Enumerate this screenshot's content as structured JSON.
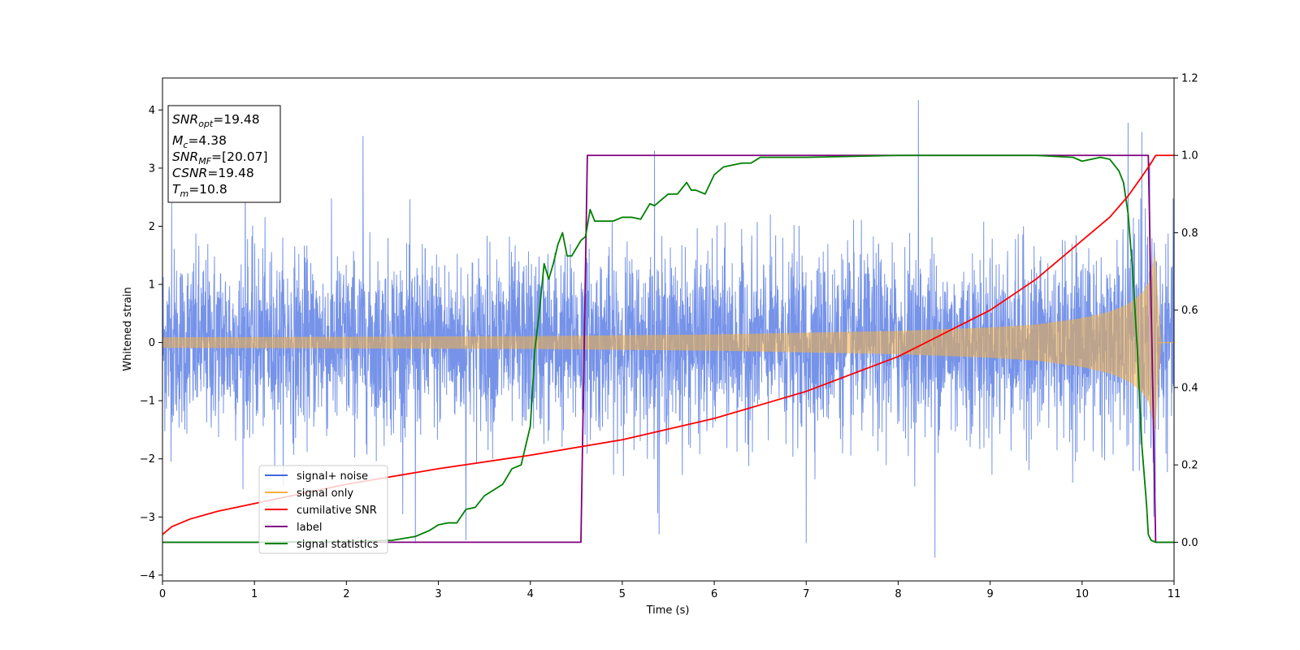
{
  "chart_data": {
    "type": "line",
    "xlabel": "Time (s)",
    "ylabel": "Whitened strain",
    "xlim": [
      0,
      11
    ],
    "ylim": [
      -4.1,
      4.55
    ],
    "ylim_right": [
      -0.1,
      1.2
    ],
    "x_ticks": [
      "0",
      "1",
      "2",
      "3",
      "4",
      "5",
      "6",
      "7",
      "8",
      "9",
      "10",
      "11"
    ],
    "y_ticks": [
      "4",
      "3",
      "2",
      "1",
      "0",
      "−1",
      "−2",
      "−3",
      "−4"
    ],
    "y_ticks_right": [
      "1.2",
      "1.0",
      "0.8",
      "0.6",
      "0.4",
      "0.2",
      "0.0"
    ],
    "grid": false,
    "legend_position": "lower-left",
    "annotation": {
      "lines": [
        {
          "italic": "SNR",
          "sub": "opt",
          "rest": "=19.48"
        },
        {
          "italic": "M",
          "sub": "c",
          "rest": "=4.38"
        },
        {
          "italic": "SNR",
          "sub": "MF",
          "rest": "=[20.07]"
        },
        {
          "italic": "CSNR",
          "sub": "",
          "rest": "=19.48"
        },
        {
          "italic": "T",
          "sub": "m",
          "rest": "=10.8"
        }
      ]
    },
    "series": [
      {
        "name": "signal+ noise",
        "axis": "left",
        "color": "#4169e1",
        "style": "noise band",
        "typical_std": 0.75,
        "extreme_points": [
          [
            0.1,
            2.4
          ],
          [
            0.9,
            3.2
          ],
          [
            2.18,
            3.55
          ],
          [
            2.75,
            -3.45
          ],
          [
            3.3,
            -3.4
          ],
          [
            5.35,
            3.3
          ],
          [
            5.4,
            -3.3
          ],
          [
            7.0,
            -3.45
          ],
          [
            8.22,
            4.17
          ],
          [
            8.4,
            -3.7
          ],
          [
            10.5,
            3.78
          ],
          [
            10.65,
            3.62
          ],
          [
            10.78,
            -3.0
          ]
        ]
      },
      {
        "name": "signal only",
        "axis": "left",
        "color": "#f5b041",
        "style": "chirp envelope",
        "envelope": {
          "t": [
            0,
            2,
            4,
            6,
            7,
            8,
            9,
            9.5,
            10,
            10.3,
            10.5,
            10.65,
            10.75,
            10.8,
            10.82,
            11
          ],
          "amp": [
            0.09,
            0.1,
            0.11,
            0.14,
            0.17,
            0.2,
            0.26,
            0.31,
            0.42,
            0.53,
            0.66,
            0.85,
            1.1,
            1.6,
            0,
            0
          ]
        }
      },
      {
        "name": "cumilative SNR",
        "axis": "right",
        "color": "#ff0000",
        "x": [
          0,
          0.1,
          0.3,
          0.6,
          1,
          2,
          3,
          4,
          5,
          6,
          7,
          8,
          9,
          9.5,
          10,
          10.3,
          10.5,
          10.65,
          10.75,
          10.8,
          10.85,
          11
        ],
        "values": [
          0.02,
          0.04,
          0.06,
          0.08,
          0.1,
          0.15,
          0.19,
          0.225,
          0.265,
          0.32,
          0.39,
          0.48,
          0.6,
          0.68,
          0.78,
          0.84,
          0.895,
          0.945,
          0.98,
          1.0,
          1.0,
          1.0
        ]
      },
      {
        "name": "label",
        "axis": "right",
        "color": "#800080",
        "x": [
          0,
          4.55,
          4.62,
          10.72,
          10.8,
          11
        ],
        "values": [
          0,
          0,
          1,
          1,
          0,
          0
        ]
      },
      {
        "name": "signal statistics",
        "axis": "right",
        "color": "#008000",
        "x": [
          0,
          1,
          2,
          2.5,
          2.75,
          2.9,
          3.0,
          3.1,
          3.2,
          3.3,
          3.4,
          3.5,
          3.6,
          3.7,
          3.8,
          3.9,
          4.0,
          4.05,
          4.1,
          4.15,
          4.2,
          4.25,
          4.3,
          4.35,
          4.4,
          4.45,
          4.5,
          4.55,
          4.6,
          4.65,
          4.7,
          4.8,
          4.9,
          5.0,
          5.1,
          5.2,
          5.3,
          5.35,
          5.4,
          5.5,
          5.6,
          5.7,
          5.75,
          5.8,
          5.9,
          6.0,
          6.1,
          6.2,
          6.3,
          6.4,
          6.5,
          7.0,
          8.0,
          9.0,
          9.5,
          9.9,
          10.0,
          10.1,
          10.2,
          10.3,
          10.4,
          10.45,
          10.5,
          10.55,
          10.6,
          10.65,
          10.7,
          10.72,
          10.75,
          10.8,
          11
        ],
        "values": [
          0,
          0,
          0.002,
          0.005,
          0.015,
          0.03,
          0.045,
          0.05,
          0.05,
          0.085,
          0.09,
          0.12,
          0.135,
          0.15,
          0.19,
          0.2,
          0.3,
          0.5,
          0.6,
          0.72,
          0.68,
          0.72,
          0.77,
          0.8,
          0.74,
          0.74,
          0.76,
          0.78,
          0.79,
          0.86,
          0.83,
          0.83,
          0.83,
          0.84,
          0.84,
          0.835,
          0.875,
          0.87,
          0.88,
          0.9,
          0.9,
          0.93,
          0.91,
          0.91,
          0.9,
          0.95,
          0.97,
          0.975,
          0.98,
          0.98,
          0.995,
          0.995,
          1.0,
          1.0,
          1.0,
          0.995,
          0.985,
          0.99,
          0.995,
          0.99,
          0.96,
          0.93,
          0.85,
          0.7,
          0.5,
          0.25,
          0.1,
          0.02,
          0.005,
          0,
          0
        ]
      }
    ]
  }
}
